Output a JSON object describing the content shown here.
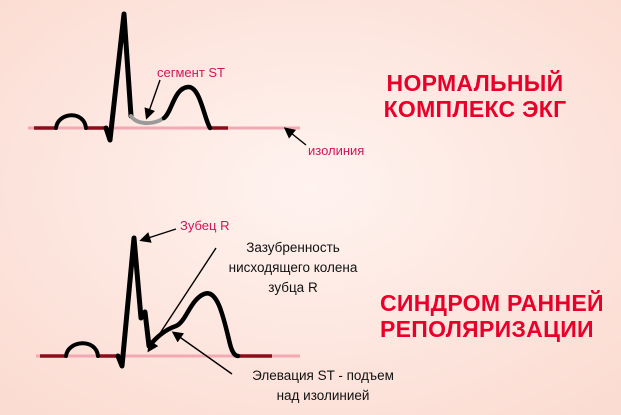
{
  "normal": {
    "title_line1": "НОРМАЛЬНЫЙ",
    "title_line2": "КОМПЛЕКС ЭКГ",
    "segment_label": "сегмент ST",
    "isoline_label": "изолиния"
  },
  "early_repolarization": {
    "title_line1": "СИНДРОМ РАННЕЙ",
    "title_line2": "РЕПОЛЯРИЗАЦИИ",
    "r_wave_label": "Зубец R",
    "notch_line1": "Зазубренность",
    "notch_line2": "нисходящего колена",
    "notch_line3": "зубца R",
    "elevation_line1": "Элевация ST - подъем",
    "elevation_line2": "над изолинией"
  },
  "colors": {
    "background": "#fde9e2",
    "title": "#e8002a",
    "pink_label": "#d4145a",
    "waveform": "#000000",
    "baseline": "#8b0d1a",
    "isoline": "#f3a9b4",
    "st_segment_highlight": "#9a9a9a"
  }
}
